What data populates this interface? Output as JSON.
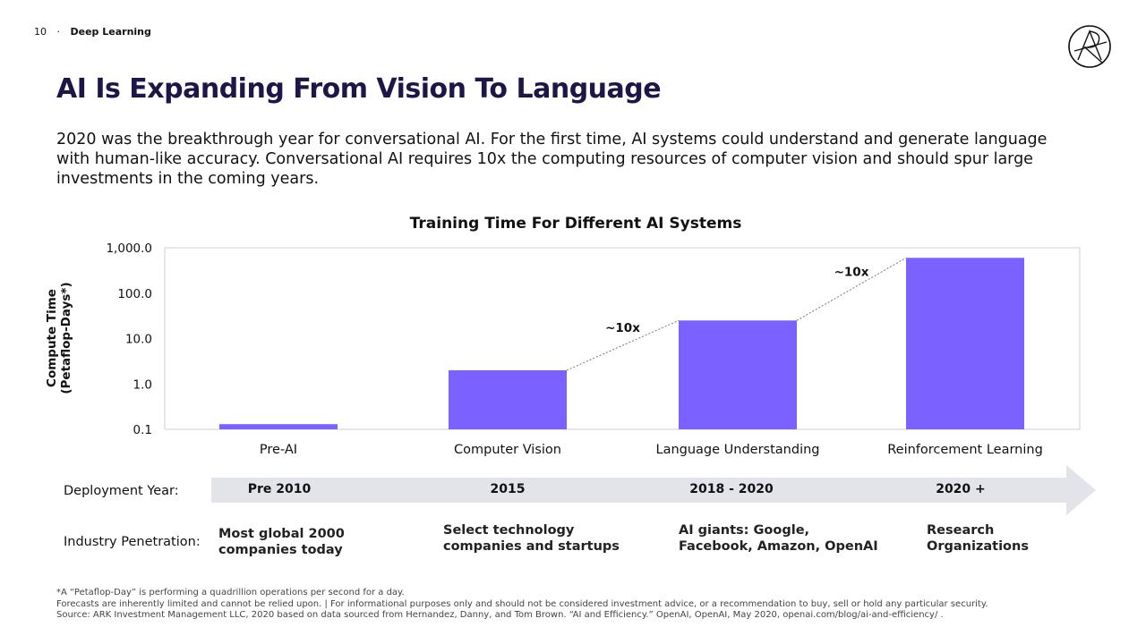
{
  "header": {
    "page_number": "10",
    "separator": "·",
    "section": "Deep Learning"
  },
  "title": "AI Is Expanding From Vision To Language",
  "subtitle": "2020 was the breakthrough year for conversational AI. For the first time, AI systems could understand and generate language with human-like accuracy. Conversational AI requires 10x the computing resources of computer vision and should spur large investments in the coming years.",
  "chart_data": {
    "type": "bar",
    "title": "Training Time For Different AI Systems",
    "ylabel_line1": "Compute Time",
    "ylabel_line2": "(Petaflop-Days*)",
    "xlabel": "",
    "yscale": "log",
    "ylim": [
      0.1,
      1000
    ],
    "yticks": [
      0.1,
      1,
      10,
      100,
      1000
    ],
    "ytick_labels": [
      "0.1",
      "1.0",
      "10.0",
      "100.0",
      "1,000.0"
    ],
    "categories": [
      "Pre-AI",
      "Computer Vision",
      "Language Understanding",
      "Reinforcement Learning"
    ],
    "values": [
      0.13,
      2.0,
      25,
      600
    ],
    "bar_color": "#7b61ff",
    "annotations": [
      {
        "text": "~10x",
        "from": 1,
        "to": 2
      },
      {
        "text": "~10x",
        "from": 2,
        "to": 3
      }
    ]
  },
  "deployment": {
    "label": "Deployment Year:",
    "years": [
      "Pre 2010",
      "2015",
      "2018 - 2020",
      "2020 +"
    ]
  },
  "penetration": {
    "label": "Industry Penetration:",
    "items": [
      [
        "Most global 2000",
        "companies today"
      ],
      [
        "Select technology",
        "companies and startups"
      ],
      [
        "AI giants: Google,",
        "Facebook, Amazon, OpenAI"
      ],
      [
        "Research",
        "Organizations"
      ]
    ]
  },
  "footnotes": [
    "*A “Petaflop-Day” is performing a quadrillion operations per second for a day.",
    "Forecasts are inherently limited and cannot be relied upon.  |  For informational purposes only and should not be considered investment advice, or a recommendation to buy, sell or hold any particular security.",
    "Source: ARK Investment Management LLC, 2020 based on data sourced from Hernandez, Danny, and Tom Brown. “AI and Efficiency.” OpenAI, OpenAI, May 2020, openai.com/blog/ai-and-efficiency/ ."
  ],
  "colors": {
    "title": "#1e1646",
    "bar": "#7b61ff",
    "arrow": "#e3e3ea"
  }
}
